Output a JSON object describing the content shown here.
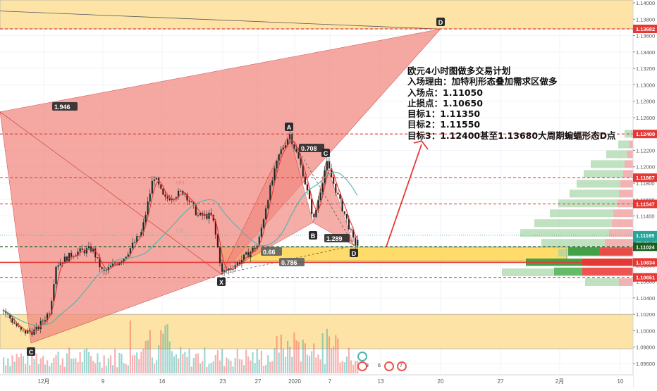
{
  "chart_data": {
    "type": "candlestick",
    "price_axis": {
      "ticks": [
        "1.14000",
        "1.13800",
        "1.13600",
        "1.13400",
        "1.13200",
        "1.13000",
        "1.12800",
        "1.12600",
        "1.12400",
        "1.12200",
        "1.12000",
        "1.11800",
        "1.11600",
        "1.11400",
        "1.11200",
        "1.11000",
        "1.10800",
        "1.10600",
        "1.10400",
        "1.10200",
        "1.10000",
        "1.09800",
        "1.09600"
      ],
      "range": [
        1.0948,
        1.1405
      ]
    },
    "time_axis": {
      "ticks": [
        "12月",
        "9",
        "16",
        "23",
        "27",
        "2020",
        "7",
        "13",
        "20",
        "27",
        "2月",
        "10"
      ]
    },
    "price_labels": [
      {
        "text": "1.13682",
        "color": "#e53935",
        "value": 1.13682
      },
      {
        "text": "1.12400",
        "color": "#e53935",
        "value": 1.124
      },
      {
        "text": "1.11867",
        "color": "#e53935",
        "value": 1.11867
      },
      {
        "text": "1.11547",
        "color": "#e53935",
        "value": 1.11547
      },
      {
        "text": "1.11165",
        "color": "#26a69a",
        "value": 1.11165
      },
      {
        "text": "02:26:46",
        "color": "#26a69a",
        "value": 1.1107
      },
      {
        "text": "1.11024",
        "color": "#1b5e20",
        "value": 1.11024
      },
      {
        "text": "1.10834",
        "color": "#e53935",
        "value": 1.10834
      },
      {
        "text": "1.10651",
        "color": "#e53935",
        "value": 1.10651
      }
    ],
    "pattern_points": [
      {
        "label": "C",
        "value": 1.0985
      },
      {
        "label": "X",
        "value": 1.1069
      },
      {
        "label": "A",
        "value": 1.124
      },
      {
        "label": "B",
        "value": 1.1132
      },
      {
        "label": "C",
        "value": 1.1205
      },
      {
        "label": "D",
        "value": 1.1368
      },
      {
        "label": "D",
        "value": 1.1104
      }
    ],
    "ratios": [
      "1.946",
      "0.708",
      "1.289",
      "0.66",
      "0.786"
    ],
    "faint_labels": [
      "HH",
      "LH"
    ],
    "volume_counts": [
      "3",
      "6",
      "7"
    ],
    "accent_colors": {
      "bull": "#26a69a",
      "bear": "#ef5350",
      "zone": "#ffcc80",
      "pattern": "#f28b82"
    }
  },
  "annotation": {
    "lines": [
      "欧元4小时图做多交易计划",
      "入场理由：加特利形态叠加需求区做多",
      "入场点：1.11050",
      "止损点：1.10650",
      "目标1：1.11350",
      "目标2：1.11550",
      "目标3：1.12400甚至1.13680大周期蝙蝠形态D点"
    ]
  }
}
